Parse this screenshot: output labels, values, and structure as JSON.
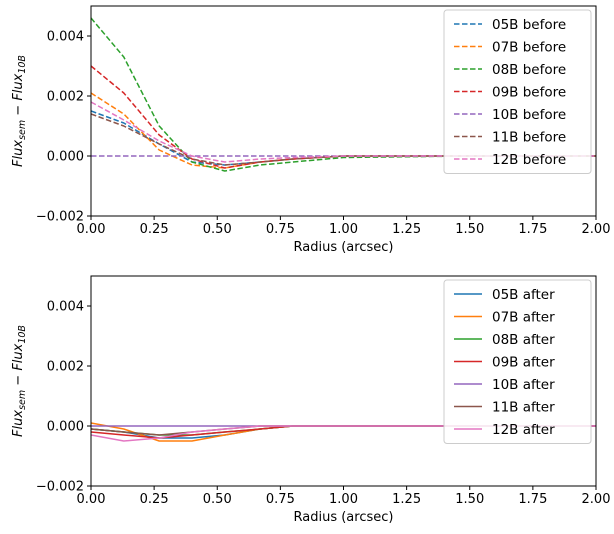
{
  "chart_data": [
    {
      "type": "line",
      "xlabel": "Radius (arcsec)",
      "ylabel_main": "Flux",
      "ylabel_sub1": "sem",
      "ylabel_mid": " − Flux",
      "ylabel_sub2": "10B",
      "xlim": [
        0.0,
        2.0
      ],
      "ylim": [
        -0.002,
        0.005
      ],
      "xticks": [
        "0.00",
        "0.25",
        "0.50",
        "0.75",
        "1.00",
        "1.25",
        "1.50",
        "1.75",
        "2.00"
      ],
      "yticks": [
        "−0.002",
        "0.000",
        "0.002",
        "0.004"
      ],
      "line_style": "dashed",
      "legend_position": "upper-right",
      "x": [
        0.0,
        0.13,
        0.27,
        0.4,
        0.53,
        0.67,
        0.8,
        1.0,
        1.5,
        2.0
      ],
      "series": [
        {
          "name": "05B before",
          "color": "#1f77b4",
          "values": [
            0.0015,
            0.0011,
            0.0004,
            -0.0002,
            -0.0003,
            -0.0002,
            -0.0001,
            0.0,
            0.0,
            0.0
          ]
        },
        {
          "name": "07B before",
          "color": "#ff7f0e",
          "values": [
            0.0021,
            0.0014,
            0.0002,
            -0.0003,
            -0.0004,
            -0.0002,
            -0.0001,
            0.0,
            0.0,
            0.0
          ]
        },
        {
          "name": "08B before",
          "color": "#2ca02c",
          "values": [
            0.0046,
            0.0033,
            0.001,
            -0.0002,
            -0.0005,
            -0.0003,
            -0.0002,
            -5e-05,
            0.0,
            0.0
          ]
        },
        {
          "name": "09B before",
          "color": "#d62728",
          "values": [
            0.003,
            0.0021,
            0.0007,
            -0.0001,
            -0.0004,
            -0.0002,
            -0.0001,
            0.0,
            0.0,
            0.0
          ]
        },
        {
          "name": "10B before",
          "color": "#9467bd",
          "values": [
            0.0,
            0.0,
            0.0,
            0.0,
            0.0,
            0.0,
            0.0,
            0.0,
            0.0,
            0.0
          ]
        },
        {
          "name": "11B before",
          "color": "#8c564b",
          "values": [
            0.0014,
            0.001,
            0.0004,
            -0.0001,
            -0.0003,
            -0.0002,
            -0.0001,
            0.0,
            0.0,
            0.0
          ]
        },
        {
          "name": "12B before",
          "color": "#e377c2",
          "values": [
            0.0018,
            0.0012,
            0.0005,
            0.0,
            -0.0002,
            -0.0001,
            -5e-05,
            0.0,
            0.0,
            0.0
          ]
        }
      ]
    },
    {
      "type": "line",
      "xlabel": "Radius (arcsec)",
      "ylabel_main": "Flux",
      "ylabel_sub1": "sem",
      "ylabel_mid": " − Flux",
      "ylabel_sub2": "10B",
      "xlim": [
        0.0,
        2.0
      ],
      "ylim": [
        -0.002,
        0.005
      ],
      "xticks": [
        "0.00",
        "0.25",
        "0.50",
        "0.75",
        "1.00",
        "1.25",
        "1.50",
        "1.75",
        "2.00"
      ],
      "yticks": [
        "−0.002",
        "0.000",
        "0.002",
        "0.004"
      ],
      "line_style": "solid",
      "legend_position": "upper-right",
      "x": [
        0.0,
        0.13,
        0.27,
        0.4,
        0.53,
        0.67,
        0.8,
        1.0,
        1.5,
        2.0
      ],
      "series": [
        {
          "name": "05B after",
          "color": "#1f77b4",
          "values": [
            -0.0001,
            -0.0002,
            -0.0004,
            -0.0004,
            -0.0003,
            -0.0001,
            0.0,
            0.0,
            0.0,
            0.0
          ]
        },
        {
          "name": "07B after",
          "color": "#ff7f0e",
          "values": [
            0.0001,
            -0.0001,
            -0.0005,
            -0.0005,
            -0.0003,
            -0.0001,
            0.0,
            0.0,
            0.0,
            0.0
          ]
        },
        {
          "name": "08B after",
          "color": "#2ca02c",
          "values": [
            -0.0001,
            -0.0002,
            -0.0003,
            -0.0003,
            -0.0002,
            -0.0001,
            0.0,
            0.0,
            0.0,
            0.0
          ]
        },
        {
          "name": "09B after",
          "color": "#d62728",
          "values": [
            -0.0002,
            -0.0003,
            -0.0004,
            -0.0003,
            -0.0002,
            -0.0001,
            0.0,
            0.0,
            0.0,
            0.0
          ]
        },
        {
          "name": "10B after",
          "color": "#9467bd",
          "values": [
            0.0,
            0.0,
            0.0,
            0.0,
            0.0,
            0.0,
            0.0,
            0.0,
            0.0,
            0.0
          ]
        },
        {
          "name": "11B after",
          "color": "#8c564b",
          "values": [
            -0.0001,
            -0.0002,
            -0.0003,
            -0.0002,
            -0.0001,
            0.0,
            0.0,
            0.0,
            0.0,
            0.0
          ]
        },
        {
          "name": "12B after",
          "color": "#e377c2",
          "values": [
            -0.0003,
            -0.0005,
            -0.0004,
            -0.0002,
            -0.0001,
            0.0,
            0.0,
            0.0,
            0.0,
            0.0
          ]
        }
      ]
    }
  ]
}
